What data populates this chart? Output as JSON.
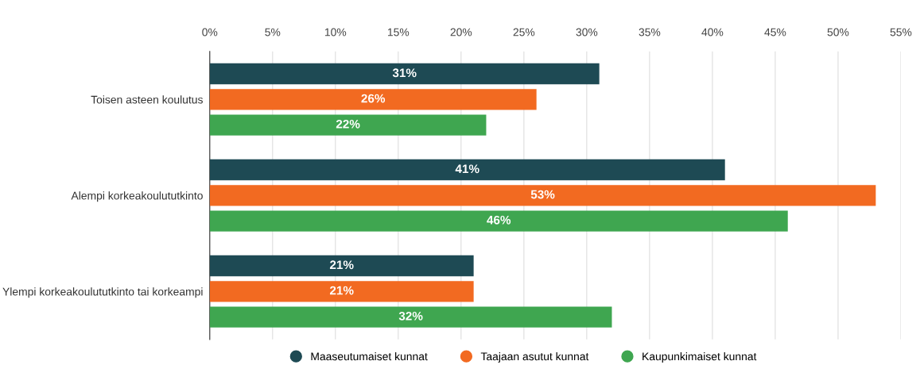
{
  "chart_data": {
    "type": "bar",
    "orientation": "horizontal",
    "categories": [
      "Toisen asteen koulutus",
      "Alempi korkeakoulututkinto",
      "Ylempi korkeakoulututkinto tai korkeampi"
    ],
    "series": [
      {
        "name": "Maaseutumaiset kunnat",
        "color": "#1e4a54",
        "values": [
          31,
          41,
          21
        ],
        "value_labels": [
          "31%",
          "41%",
          "21%"
        ]
      },
      {
        "name": "Taajaan asutut kunnat",
        "color": "#f26a21",
        "values": [
          26,
          53,
          21
        ],
        "value_labels": [
          "26%",
          "53%",
          "21%"
        ]
      },
      {
        "name": "Kaupunkimaiset kunnat",
        "color": "#3fa650",
        "values": [
          22,
          46,
          32
        ],
        "value_labels": [
          "22%",
          "46%",
          "32%"
        ]
      }
    ],
    "xlim": [
      0,
      55
    ],
    "xticks": [
      {
        "value": 0,
        "label": "0%"
      },
      {
        "value": 5,
        "label": "5%"
      },
      {
        "value": 10,
        "label": "10%"
      },
      {
        "value": 15,
        "label": "15%"
      },
      {
        "value": 20,
        "label": "20%"
      },
      {
        "value": 25,
        "label": "25%"
      },
      {
        "value": 30,
        "label": "30%"
      },
      {
        "value": 35,
        "label": "35%"
      },
      {
        "value": 40,
        "label": "40%"
      },
      {
        "value": 45,
        "label": "45%"
      },
      {
        "value": 50,
        "label": "50%"
      },
      {
        "value": 55,
        "label": "55%"
      }
    ],
    "grid": "x",
    "legend": "bottom"
  }
}
